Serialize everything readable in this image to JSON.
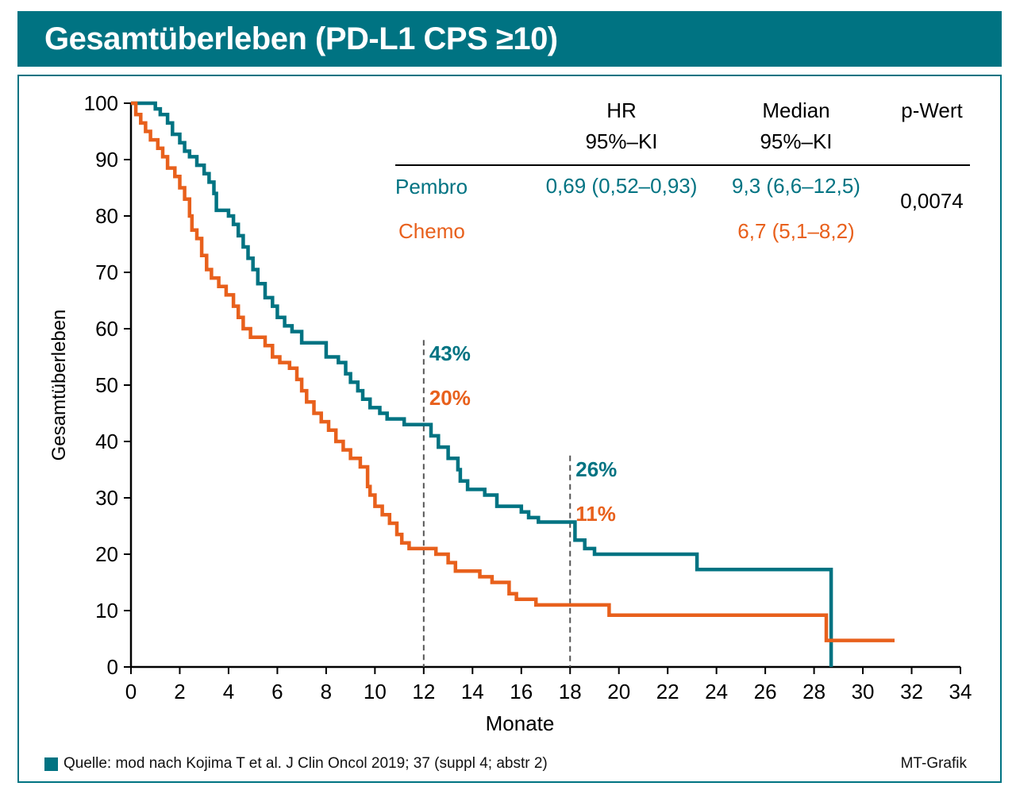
{
  "header": {
    "title": "Gesamtüberleben (PD-L1 CPS ≥10)"
  },
  "colors": {
    "pembro": "#007382",
    "chemo": "#e8601c",
    "frame": "#007382"
  },
  "stats_table": {
    "headers": {
      "hr_line1": "HR",
      "hr_line2": "95%–KI",
      "median_line1": "Median",
      "median_line2": "95%–KI",
      "pvalue": "p-Wert"
    },
    "rows": [
      {
        "name": "Pembro",
        "hr": "0,69 (0,52–0,93)",
        "median": "9,3 (6,6–12,5)"
      },
      {
        "name": "Chemo",
        "hr": "",
        "median": "6,7 (5,1–8,2)"
      }
    ],
    "pvalue": "0,0074"
  },
  "footer": {
    "source": "Quelle: mod nach Kojima T et al. J Clin Oncol 2019; 37 (suppl 4; abstr 2)",
    "credit": "MT-Grafik"
  },
  "chart_data": {
    "type": "line",
    "xlabel": "Monate",
    "ylabel": "Gesamtüberleben",
    "xlim": [
      0,
      34
    ],
    "ylim": [
      0,
      100
    ],
    "xticks": [
      "0",
      "2",
      "4",
      "6",
      "8",
      "10",
      "12",
      "14",
      "16",
      "18",
      "20",
      "22",
      "24",
      "26",
      "28",
      "30",
      "32",
      "34"
    ],
    "yticks": [
      "0",
      "10",
      "20",
      "30",
      "40",
      "50",
      "60",
      "70",
      "80",
      "90",
      "100"
    ],
    "grid": false,
    "series": [
      {
        "name": "Pembro",
        "color": "#007382",
        "points": [
          [
            0,
            100
          ],
          [
            0.8,
            100
          ],
          [
            1.0,
            99
          ],
          [
            1.2,
            98
          ],
          [
            1.5,
            96.5
          ],
          [
            1.7,
            94.5
          ],
          [
            2.0,
            93
          ],
          [
            2.2,
            91.5
          ],
          [
            2.4,
            90.5
          ],
          [
            2.7,
            89
          ],
          [
            3.0,
            87.5
          ],
          [
            3.2,
            86
          ],
          [
            3.4,
            84
          ],
          [
            3.5,
            81
          ],
          [
            4.0,
            80
          ],
          [
            4.2,
            78.5
          ],
          [
            4.4,
            76.5
          ],
          [
            4.6,
            74.5
          ],
          [
            4.8,
            72.5
          ],
          [
            5.0,
            70.5
          ],
          [
            5.2,
            68
          ],
          [
            5.5,
            65.5
          ],
          [
            5.8,
            64
          ],
          [
            6.0,
            62
          ],
          [
            6.3,
            60.5
          ],
          [
            6.6,
            59.5
          ],
          [
            7.0,
            57.5
          ],
          [
            7.8,
            57.5
          ],
          [
            8.0,
            55
          ],
          [
            8.5,
            54
          ],
          [
            8.8,
            52
          ],
          [
            9.0,
            50.5
          ],
          [
            9.3,
            49
          ],
          [
            9.5,
            47.5
          ],
          [
            9.8,
            46
          ],
          [
            10.2,
            45
          ],
          [
            10.5,
            44
          ],
          [
            11.2,
            43
          ],
          [
            12.0,
            43
          ],
          [
            12.3,
            41
          ],
          [
            12.6,
            39
          ],
          [
            13.0,
            37
          ],
          [
            13.4,
            35
          ],
          [
            13.5,
            33
          ],
          [
            13.8,
            31.5
          ],
          [
            14.5,
            30.5
          ],
          [
            15.0,
            28.5
          ],
          [
            16.0,
            27.5
          ],
          [
            16.3,
            26.5
          ],
          [
            16.7,
            25.7
          ],
          [
            18.0,
            25.7
          ],
          [
            18.2,
            22.5
          ],
          [
            18.6,
            21
          ],
          [
            19.0,
            20
          ],
          [
            23.2,
            20
          ],
          [
            23.2,
            17.3
          ],
          [
            28.7,
            17.3
          ],
          [
            28.7,
            0
          ]
        ]
      },
      {
        "name": "Chemo",
        "color": "#e8601c",
        "points": [
          [
            0,
            100
          ],
          [
            0.2,
            98
          ],
          [
            0.4,
            96.5
          ],
          [
            0.6,
            95
          ],
          [
            0.8,
            93.5
          ],
          [
            1.1,
            92
          ],
          [
            1.3,
            90.5
          ],
          [
            1.5,
            88.5
          ],
          [
            1.8,
            87
          ],
          [
            2.0,
            85
          ],
          [
            2.2,
            83
          ],
          [
            2.4,
            80
          ],
          [
            2.5,
            77.5
          ],
          [
            2.7,
            76
          ],
          [
            2.9,
            73
          ],
          [
            3.1,
            70.5
          ],
          [
            3.3,
            69
          ],
          [
            3.6,
            67.5
          ],
          [
            3.9,
            66
          ],
          [
            4.2,
            64
          ],
          [
            4.4,
            62
          ],
          [
            4.6,
            60
          ],
          [
            4.9,
            58.5
          ],
          [
            5.5,
            57
          ],
          [
            5.8,
            55
          ],
          [
            6.1,
            54
          ],
          [
            6.5,
            53
          ],
          [
            6.8,
            51
          ],
          [
            7.0,
            49
          ],
          [
            7.2,
            47
          ],
          [
            7.5,
            45
          ],
          [
            7.8,
            43.5
          ],
          [
            8.1,
            42
          ],
          [
            8.4,
            40
          ],
          [
            8.7,
            38.5
          ],
          [
            9.0,
            37
          ],
          [
            9.4,
            35.5
          ],
          [
            9.7,
            32
          ],
          [
            9.8,
            30.5
          ],
          [
            10.0,
            28.5
          ],
          [
            10.3,
            27
          ],
          [
            10.6,
            25.5
          ],
          [
            10.9,
            23.5
          ],
          [
            11.1,
            22
          ],
          [
            11.4,
            21
          ],
          [
            12.5,
            20
          ],
          [
            13.0,
            18.5
          ],
          [
            13.3,
            17
          ],
          [
            14.3,
            16
          ],
          [
            14.8,
            15
          ],
          [
            15.5,
            13
          ],
          [
            15.8,
            12
          ],
          [
            16.6,
            11
          ],
          [
            19.6,
            11
          ],
          [
            19.6,
            9.2
          ],
          [
            28.5,
            9.2
          ],
          [
            28.5,
            4.7
          ],
          [
            31.3,
            4.7
          ]
        ]
      }
    ],
    "annotations": [
      {
        "x": 12,
        "pembro": "43%",
        "chemo": "20%"
      },
      {
        "x": 18,
        "pembro": "26%",
        "chemo": "11%"
      }
    ]
  }
}
